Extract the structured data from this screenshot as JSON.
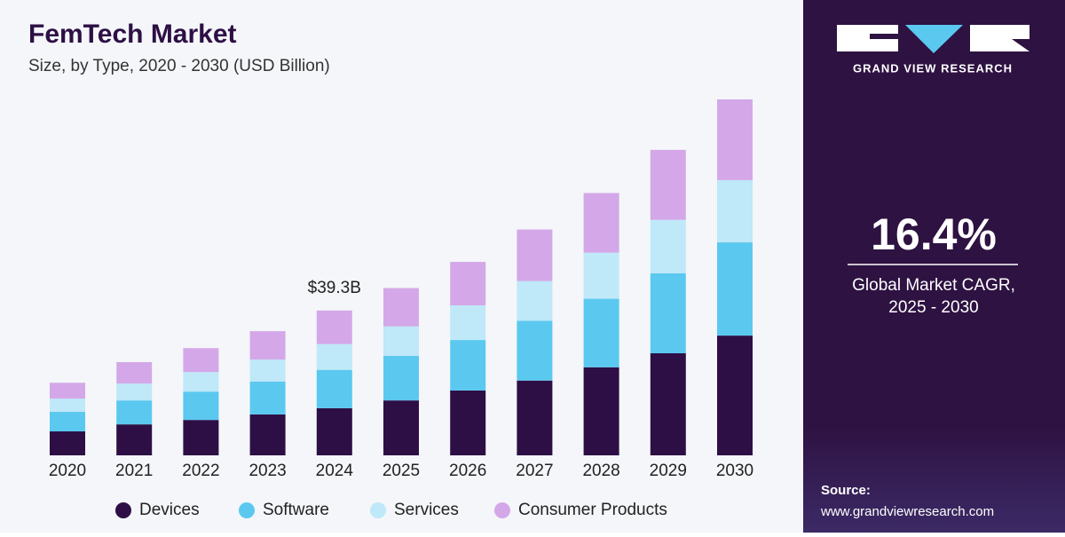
{
  "chart_data": {
    "type": "stacked-bar",
    "title": "FemTech Market",
    "subtitle": "Size, by Type, 2020 - 2030 (USD Billion)",
    "categories": [
      "2020",
      "2021",
      "2022",
      "2023",
      "2024",
      "2025",
      "2026",
      "2027",
      "2028",
      "2029",
      "2030"
    ],
    "series": [
      {
        "name": "Devices",
        "color": "#2d0f45",
        "values": [
          6.5,
          8.4,
          9.6,
          11.1,
          12.8,
          14.9,
          17.6,
          20.3,
          23.9,
          27.7,
          32.5
        ]
      },
      {
        "name": "Software",
        "color": "#5bc8f0",
        "values": [
          5.3,
          6.5,
          7.7,
          8.9,
          10.4,
          12.1,
          13.7,
          16.2,
          18.6,
          21.7,
          25.3
        ]
      },
      {
        "name": "Services",
        "color": "#bfe8f8",
        "values": [
          3.6,
          4.6,
          5.3,
          6.0,
          7.0,
          8.0,
          9.4,
          10.8,
          12.5,
          14.5,
          16.9
        ]
      },
      {
        "name": "Consumer Products",
        "color": "#d4a8e8",
        "values": [
          4.3,
          5.8,
          6.5,
          7.7,
          9.1,
          10.4,
          11.8,
          14.0,
          16.2,
          19.0,
          21.9
        ]
      }
    ],
    "annotation": {
      "category": "2024",
      "value": 39.3,
      "label": "$39.3B"
    }
  },
  "sidebar": {
    "brand": "GRAND VIEW RESEARCH",
    "cagr": "16.4%",
    "cagr_label": [
      "Global Market CAGR,",
      "2025 - 2030"
    ],
    "source_title": "Source:",
    "source_url": "www.grandviewresearch.com"
  }
}
